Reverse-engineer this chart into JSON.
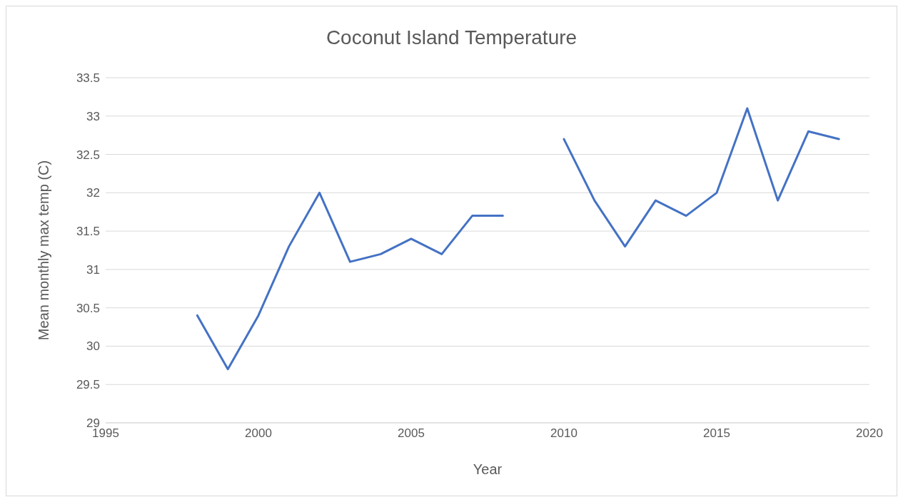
{
  "chart_data": {
    "type": "line",
    "title": "Coconut Island Temperature",
    "xlabel": "Year",
    "ylabel": "Mean monthly max temp (C)",
    "x": [
      1998,
      1999,
      2000,
      2001,
      2002,
      2003,
      2004,
      2005,
      2006,
      2007,
      2008,
      2009,
      2010,
      2011,
      2012,
      2013,
      2014,
      2015,
      2016,
      2017,
      2018,
      2019
    ],
    "series": [
      {
        "color": "#4472c4",
        "values": [
          30.4,
          29.7,
          30.4,
          31.3,
          32.0,
          31.1,
          31.2,
          31.4,
          31.2,
          31.7,
          31.7,
          null,
          32.7,
          31.9,
          31.3,
          31.9,
          31.7,
          32.0,
          33.1,
          31.9,
          32.8,
          32.7
        ]
      }
    ],
    "xlim": [
      1995,
      2020
    ],
    "xticks": [
      1995,
      2000,
      2005,
      2010,
      2015,
      2020
    ],
    "ylim": [
      29,
      33.5
    ],
    "yticks": [
      29,
      29.5,
      30,
      30.5,
      31,
      31.5,
      32,
      32.5,
      33,
      33.5
    ],
    "grid": "y",
    "legend": false,
    "marker": "none",
    "line_style": "solid"
  }
}
